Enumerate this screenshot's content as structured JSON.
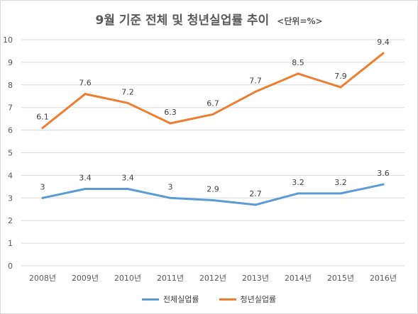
{
  "header": {
    "title": "9월 기준 전체 및 청년실업률 추이",
    "unit": "<단위=%>"
  },
  "legend": {
    "series_0": "전체실업률",
    "series_1": "청년실업률"
  },
  "colors": {
    "series_0": "#5b9bd5",
    "series_1": "#ed7d31",
    "grid": "#d9d9d9",
    "text": "#595959"
  },
  "chart_data": {
    "type": "line",
    "title": "9월 기준 전체 및 청년실업률 추이",
    "subtitle": "<단위=%>",
    "categories": [
      "2008년",
      "2009년",
      "2010년",
      "2011년",
      "2012년",
      "2013년",
      "2014년",
      "2015년",
      "2016년"
    ],
    "series": [
      {
        "name": "전체실업률",
        "values": [
          3,
          3.4,
          3.4,
          3,
          2.9,
          2.7,
          3.2,
          3.2,
          3.6
        ]
      },
      {
        "name": "청년실업률",
        "values": [
          6.1,
          7.6,
          7.2,
          6.3,
          6.7,
          7.7,
          8.5,
          7.9,
          9.4
        ]
      }
    ],
    "yticks": [
      0,
      1,
      2,
      3,
      4,
      5,
      6,
      7,
      8,
      9,
      10
    ],
    "ylim": [
      0,
      10
    ],
    "xlabel": "",
    "ylabel": "",
    "grid": true,
    "legend_position": "bottom",
    "data_labels": true
  }
}
